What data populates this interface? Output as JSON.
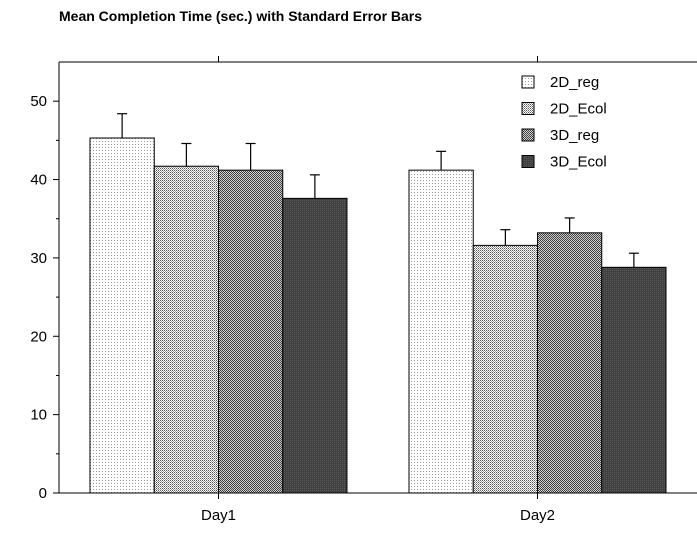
{
  "chart_data": {
    "type": "bar",
    "title": "Mean Completion Time (sec.) with Standard Error Bars",
    "xlabel": "",
    "ylabel": "",
    "categories": [
      "Day1",
      "Day2"
    ],
    "ylim": [
      0,
      55
    ],
    "yticks": [
      0,
      10,
      20,
      30,
      40,
      50
    ],
    "series": [
      {
        "name": "2D_reg",
        "values": [
          45.3,
          41.2
        ],
        "errors": [
          3.1,
          2.4
        ],
        "pattern": "light-dots"
      },
      {
        "name": "2D_Ecol",
        "values": [
          41.7,
          31.6
        ],
        "errors": [
          2.9,
          2.0
        ],
        "pattern": "medium-dots"
      },
      {
        "name": "3D_reg",
        "values": [
          41.2,
          33.2
        ],
        "errors": [
          3.4,
          1.9
        ],
        "pattern": "checker"
      },
      {
        "name": "3D_Ecol",
        "values": [
          37.6,
          28.8
        ],
        "errors": [
          3.0,
          1.8
        ],
        "pattern": "dark-dots"
      }
    ],
    "legend": "top-right",
    "grid": false
  }
}
